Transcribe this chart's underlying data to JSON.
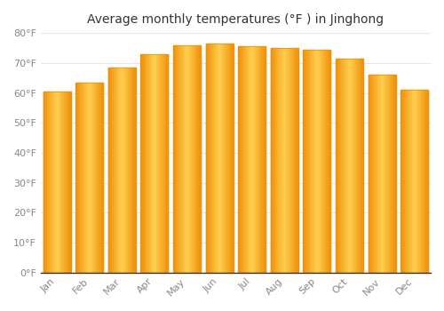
{
  "title": "Average monthly temperatures (°F ) in Jinghong",
  "months": [
    "Jan",
    "Feb",
    "Mar",
    "Apr",
    "May",
    "Jun",
    "Jul",
    "Aug",
    "Sep",
    "Oct",
    "Nov",
    "Dec"
  ],
  "values": [
    60.5,
    63.5,
    68.5,
    73.0,
    76.0,
    76.5,
    75.5,
    75.0,
    74.5,
    71.5,
    66.0,
    61.0
  ],
  "bar_color_center": "#FFD050",
  "bar_color_edge": "#F0900A",
  "ylim": [
    0,
    80
  ],
  "ytick_step": 10,
  "background_color": "#FFFFFF",
  "grid_color": "#E8E8E8",
  "tick_label_color": "#888888",
  "title_color": "#333333",
  "title_fontsize": 10,
  "bar_width": 0.85
}
